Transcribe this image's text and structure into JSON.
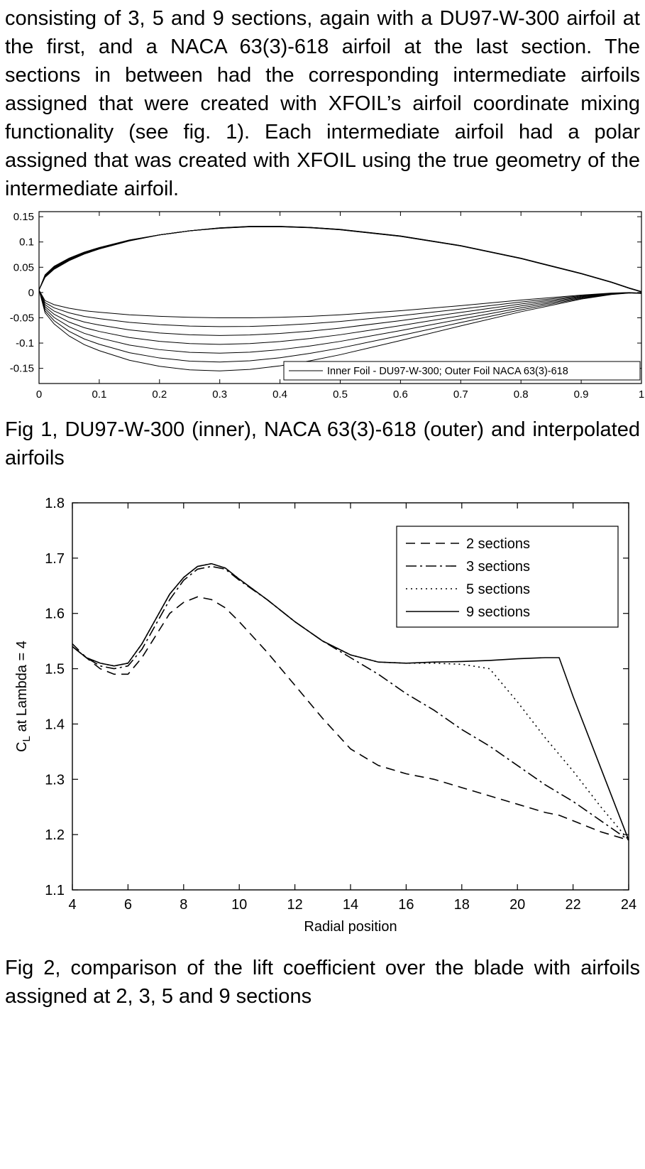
{
  "paragraph": {
    "text": "consisting of 3, 5 and 9 sections, again with a DU97-W-300 airfoil at the first, and a NACA 63(3)-618 airfoil at the last section. The sections in between had the corresponding intermediate airfoils assigned that were created with XFOIL’s airfoil coordinate mixing functionality (see fig. 1). Each intermediate airfoil had a polar assigned that was created with XFOIL using the true geometry of the intermediate airfoil."
  },
  "fig1": {
    "caption": "Fig 1, DU97-W-300 (inner), NACA 63(3)-618 (outer) and interpolated airfoils",
    "chart_data": {
      "type": "line",
      "title": "",
      "xlabel": "",
      "ylabel": "",
      "xlim": [
        0,
        1
      ],
      "ylim": [
        -0.18,
        0.16
      ],
      "xticks": [
        0,
        0.1,
        0.2,
        0.3,
        0.4,
        0.5,
        0.6,
        0.7,
        0.8,
        0.9,
        1
      ],
      "yticks": [
        0.15,
        0.1,
        0.05,
        0,
        -0.05,
        -0.1,
        -0.15
      ],
      "grid": false,
      "legend": {
        "label": "Inner Foil - DU97-W-300; Outer Foil NACA 63(3)-618",
        "position": "bottom-right"
      },
      "num_profiles": 7,
      "x": [
        0,
        0.01,
        0.025,
        0.05,
        0.075,
        0.1,
        0.15,
        0.2,
        0.25,
        0.3,
        0.35,
        0.4,
        0.45,
        0.5,
        0.6,
        0.7,
        0.8,
        0.9,
        0.95,
        0.98,
        1
      ],
      "inner_foil": {
        "name": "DU97-W-300",
        "upper": [
          0.005,
          0.03,
          0.046,
          0.063,
          0.076,
          0.086,
          0.102,
          0.114,
          0.122,
          0.128,
          0.131,
          0.131,
          0.129,
          0.125,
          0.112,
          0.093,
          0.068,
          0.038,
          0.021,
          0.009,
          0.002
        ],
        "lower": [
          0.005,
          -0.04,
          -0.062,
          -0.086,
          -0.103,
          -0.115,
          -0.134,
          -0.146,
          -0.153,
          -0.155,
          -0.152,
          -0.145,
          -0.135,
          -0.123,
          -0.095,
          -0.066,
          -0.038,
          -0.013,
          -0.004,
          -0.001,
          -0.002
        ]
      },
      "outer_foil": {
        "name": "NACA 63(3)-618",
        "upper": [
          0.005,
          0.035,
          0.052,
          0.068,
          0.08,
          0.089,
          0.104,
          0.114,
          0.122,
          0.127,
          0.13,
          0.13,
          0.128,
          0.124,
          0.111,
          0.092,
          0.067,
          0.037,
          0.02,
          0.008,
          0.001
        ],
        "lower": [
          0.005,
          -0.016,
          -0.024,
          -0.031,
          -0.036,
          -0.039,
          -0.044,
          -0.047,
          -0.049,
          -0.05,
          -0.05,
          -0.049,
          -0.047,
          -0.044,
          -0.036,
          -0.026,
          -0.015,
          -0.005,
          -0.001,
          0.0,
          -0.001
        ]
      }
    }
  },
  "fig2": {
    "caption": "Fig 2, comparison of the lift coefficient over the blade with airfoils assigned at 2, 3, 5 and 9 sections",
    "chart_data": {
      "type": "line",
      "title": "",
      "xlabel": "Radial position",
      "ylabel": {
        "main": "C",
        "sub": "L",
        "rest": " at Lambda = 4"
      },
      "xlim": [
        4,
        24
      ],
      "ylim": [
        1.1,
        1.8
      ],
      "xticks": [
        4,
        6,
        8,
        10,
        12,
        14,
        16,
        18,
        20,
        22,
        24
      ],
      "yticks": [
        1.1,
        1.2,
        1.3,
        1.4,
        1.5,
        1.6,
        1.7,
        1.8
      ],
      "grid": false,
      "legend_position": "top-right",
      "x": [
        4,
        4.5,
        5,
        5.5,
        6,
        6.5,
        7,
        7.5,
        8,
        8.5,
        9,
        9.5,
        10,
        11,
        12,
        13,
        14,
        15,
        16,
        17,
        18,
        19,
        20,
        21,
        21.5,
        22,
        23,
        24
      ],
      "series": [
        {
          "name": "2 sections",
          "style": "dashed",
          "values": [
            1.545,
            1.52,
            1.5,
            1.49,
            1.49,
            1.52,
            1.56,
            1.6,
            1.62,
            1.63,
            1.625,
            1.61,
            1.585,
            1.53,
            1.47,
            1.41,
            1.355,
            1.325,
            1.31,
            1.3,
            1.285,
            1.27,
            1.255,
            1.24,
            1.235,
            1.225,
            1.205,
            1.19
          ]
        },
        {
          "name": "3 sections",
          "style": "dashdot",
          "values": [
            1.54,
            1.52,
            1.505,
            1.5,
            1.505,
            1.535,
            1.58,
            1.625,
            1.66,
            1.68,
            1.685,
            1.68,
            1.66,
            1.625,
            1.585,
            1.55,
            1.52,
            1.49,
            1.455,
            1.425,
            1.39,
            1.36,
            1.325,
            1.29,
            1.275,
            1.26,
            1.225,
            1.19
          ]
        },
        {
          "name": "5 sections",
          "style": "dotted",
          "values": [
            1.54,
            1.52,
            1.51,
            1.505,
            1.51,
            1.545,
            1.59,
            1.635,
            1.665,
            1.685,
            1.69,
            1.682,
            1.662,
            1.625,
            1.585,
            1.55,
            1.525,
            1.512,
            1.51,
            1.51,
            1.508,
            1.5,
            1.44,
            1.375,
            1.345,
            1.315,
            1.25,
            1.19
          ]
        },
        {
          "name": "9 sections",
          "style": "solid",
          "values": [
            1.54,
            1.52,
            1.51,
            1.505,
            1.51,
            1.545,
            1.59,
            1.635,
            1.665,
            1.685,
            1.69,
            1.682,
            1.662,
            1.625,
            1.585,
            1.55,
            1.525,
            1.512,
            1.51,
            1.512,
            1.513,
            1.515,
            1.518,
            1.52,
            1.52,
            1.45,
            1.32,
            1.19
          ]
        }
      ]
    }
  },
  "colors": {
    "ink": "#000000",
    "paper": "#ffffff"
  }
}
